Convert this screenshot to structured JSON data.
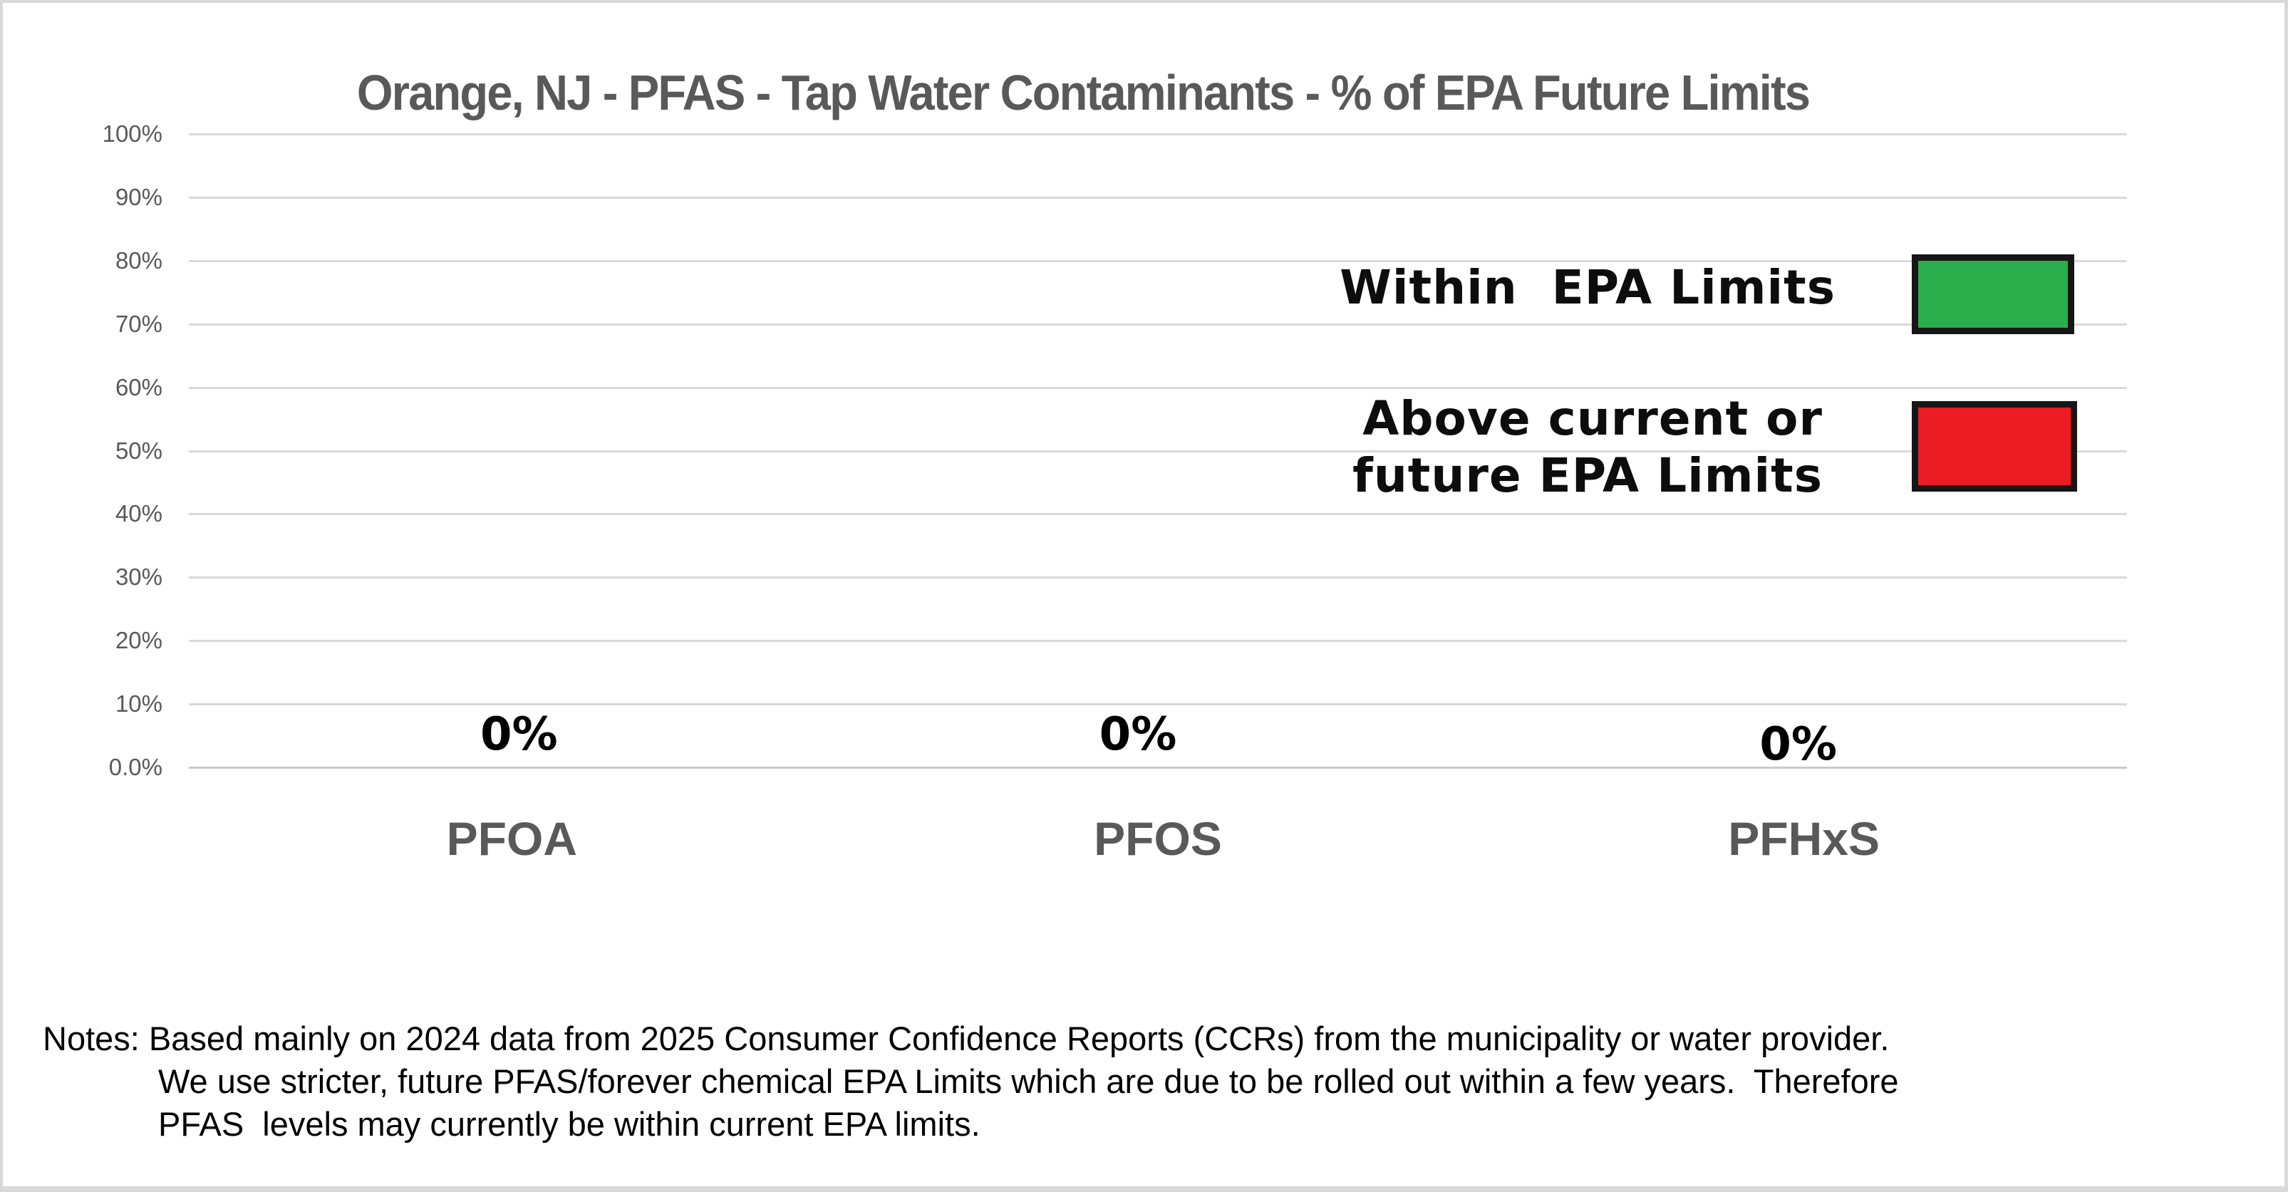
{
  "chart_data": {
    "type": "bar",
    "title": "Orange, NJ - PFAS - Tap Water Contaminants - % of EPA Future Limits",
    "categories": [
      "PFOA",
      "PFOS",
      "PFHxS"
    ],
    "values": [
      0,
      0,
      0
    ],
    "value_labels": [
      "0%",
      "0%",
      "0%"
    ],
    "xlabel": "",
    "ylabel": "",
    "ylim": [
      0,
      100
    ],
    "ytick_values": [
      100,
      90,
      80,
      70,
      60,
      50,
      40,
      30,
      20,
      10,
      0
    ],
    "ytick_labels": [
      "100%",
      "90%",
      "80%",
      "70%",
      "60%",
      "50%",
      "40%",
      "30%",
      "20%",
      "10%",
      "0.0%"
    ],
    "grid": true,
    "legend_position": "inside-top-right",
    "legend": [
      {
        "label": "Within  EPA Limits",
        "swatch_color": "#2bae4c",
        "swatch_border": "#161616"
      },
      {
        "label": "Above current or\nfuture EPA Limits",
        "swatch_color": "#ec1c24",
        "swatch_border": "#161616"
      }
    ]
  },
  "notes": {
    "line1": "Notes: Based mainly on 2024 data from 2025 Consumer Confidence Reports (CCRs) from the municipality or water provider.",
    "line2": "We use stricter, future PFAS/forever chemical EPA Limits which are due to be rolled out within a few years.  Therefore",
    "line3": "PFAS  levels may currently be within current EPA limits."
  },
  "colors": {
    "title_text": "#595959",
    "axis_text": "#595959",
    "category_text": "#595959",
    "value_label_text": "#000000",
    "legend_text": "#0d0d0d",
    "gridline": "#d9d9d9",
    "baseline": "#c9c9c9",
    "page_border": "#d9d9d9",
    "background": "#ffffff",
    "green": "#2bae4c",
    "red": "#ec1c24"
  }
}
